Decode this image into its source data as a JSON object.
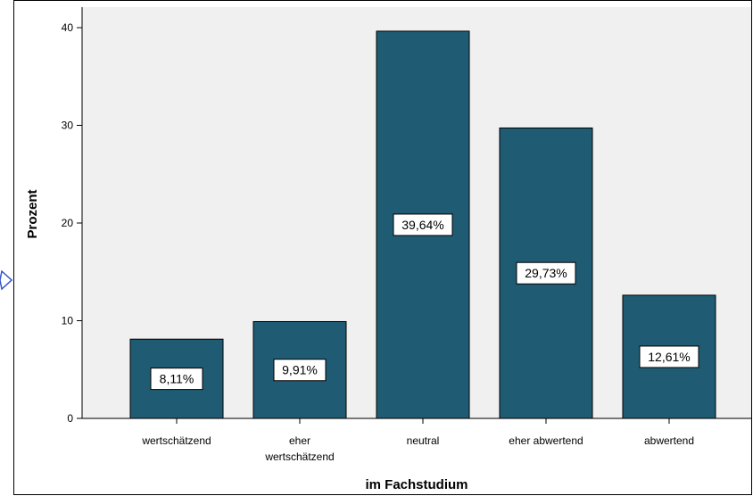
{
  "chart_data": {
    "type": "bar",
    "categories": [
      [
        "wertschätzend"
      ],
      [
        "eher",
        "wertschätzend"
      ],
      [
        "neutral"
      ],
      [
        "eher abwertend"
      ],
      [
        "abwertend"
      ]
    ],
    "values": [
      8.11,
      9.91,
      39.64,
      29.73,
      12.61
    ],
    "data_labels": [
      "8,11%",
      "9,91%",
      "39,64%",
      "29,73%",
      "12,61%"
    ],
    "xlabel": "im Fachstudium",
    "ylabel": "Prozent",
    "ylim": [
      0,
      42
    ],
    "yticks": [
      0,
      10,
      20,
      30,
      40
    ],
    "grid": false,
    "colors": {
      "bar_fill": "#1f5c74",
      "plot_background": "#f0f0f0",
      "label_box": "#ffffff"
    }
  }
}
